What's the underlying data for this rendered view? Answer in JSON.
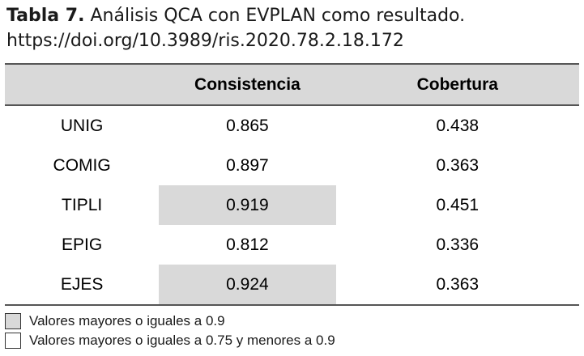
{
  "caption": {
    "label": "Tabla 7.",
    "text": "Análisis QCA con EVPLAN como resultado.",
    "doi": "https://doi.org/10.3989/ris.2020.78.2.18.172"
  },
  "table": {
    "headers": [
      "",
      "Consistencia",
      "Cobertura"
    ],
    "rows": [
      {
        "name": "UNIG",
        "consistencia": "0.865",
        "cobertura": "0.438"
      },
      {
        "name": "COMIG",
        "consistencia": "0.897",
        "cobertura": "0.363"
      },
      {
        "name": "TIPLI",
        "consistencia": "0.919",
        "cobertura": "0.451"
      },
      {
        "name": "EPIG",
        "consistencia": "0.812",
        "cobertura": "0.336"
      },
      {
        "name": "EJES",
        "consistencia": "0.924",
        "cobertura": "0.363"
      }
    ]
  },
  "legend": [
    {
      "label": "Valores mayores o iguales a 0.9",
      "color": "#d9d9d9"
    },
    {
      "label": "Valores mayores o iguales a 0.75 y menores a 0.9",
      "color": "#ffffff"
    }
  ]
}
